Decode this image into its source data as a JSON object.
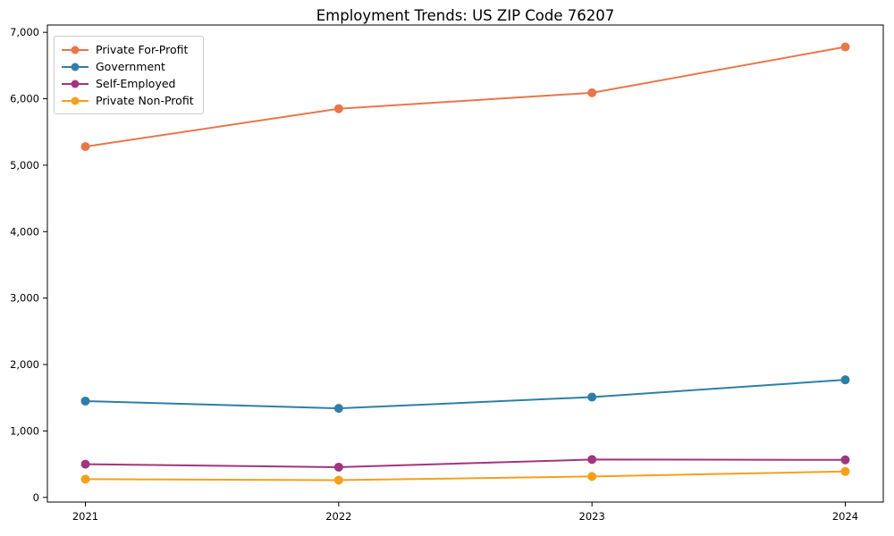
{
  "chart_data": {
    "type": "line",
    "title": "Employment Trends: US ZIP Code 76207",
    "x": [
      "2021",
      "2022",
      "2023",
      "2024"
    ],
    "series": [
      {
        "name": "Private For-Profit",
        "color": "#e8764b",
        "values": [
          5280,
          5850,
          6090,
          6780
        ]
      },
      {
        "name": "Government",
        "color": "#2e7fa7",
        "values": [
          1450,
          1340,
          1510,
          1770
        ]
      },
      {
        "name": "Self-Employed",
        "color": "#a13580",
        "values": [
          500,
          455,
          570,
          565
        ]
      },
      {
        "name": "Private Non-Profit",
        "color": "#f5a01b",
        "values": [
          275,
          260,
          315,
          390
        ]
      }
    ],
    "xlabel": "",
    "ylabel": "",
    "ylim": [
      -70,
      7110
    ],
    "yticks": [
      0,
      1000,
      2000,
      3000,
      4000,
      5000,
      6000,
      7000
    ],
    "ytick_labels": [
      "0",
      "1,000",
      "2,000",
      "3,000",
      "4,000",
      "5,000",
      "6,000",
      "7,000"
    ],
    "grid": false,
    "legend_position": "upper-left",
    "axis_color": "#000000",
    "marker": "circle"
  }
}
